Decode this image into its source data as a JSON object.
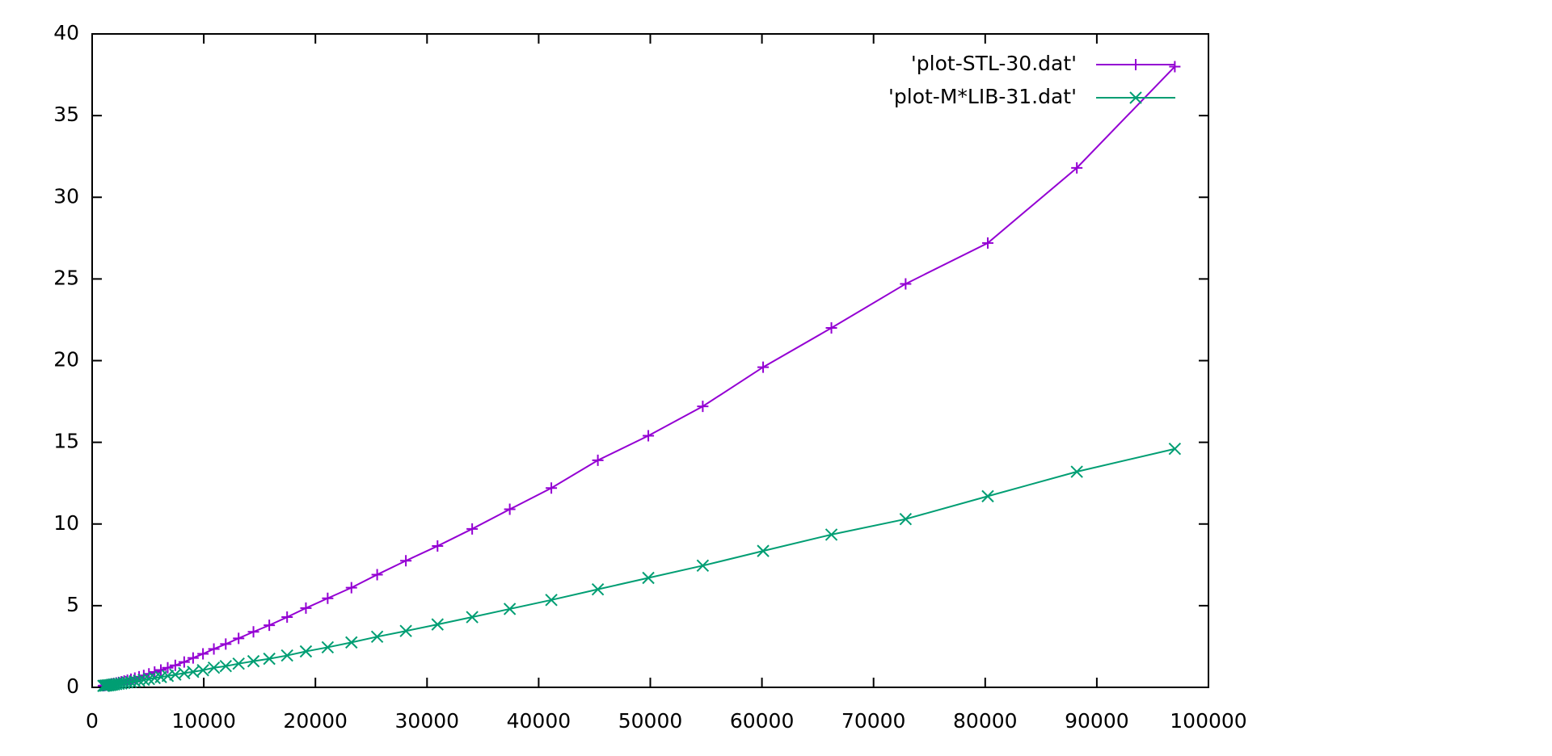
{
  "chart_data": {
    "type": "line",
    "x": [
      1006,
      1107,
      1218,
      1339,
      1473,
      1621,
      1783,
      1961,
      2157,
      2373,
      2610,
      2871,
      3158,
      3474,
      3822,
      4204,
      4624,
      5086,
      5595,
      6155,
      6770,
      7447,
      8245,
      9043,
      9929,
      10904,
      11968,
      13121,
      14450,
      15869,
      17465,
      19149,
      21099,
      23227,
      25532,
      28103,
      30940,
      34043,
      37411,
      41135,
      45301,
      49823,
      54699,
      60106,
      66223,
      72872,
      80230,
      88209,
      96986
    ],
    "series": [
      {
        "name": "'plot-STL-30.dat'",
        "color": "#9400d3",
        "marker": "plus",
        "values": [
          0.1,
          0.11,
          0.13,
          0.14,
          0.16,
          0.18,
          0.21,
          0.23,
          0.27,
          0.3,
          0.34,
          0.39,
          0.44,
          0.5,
          0.57,
          0.65,
          0.73,
          0.83,
          0.94,
          1.06,
          1.2,
          1.35,
          1.55,
          1.8,
          2.05,
          2.35,
          2.65,
          3.0,
          3.4,
          3.8,
          4.3,
          4.85,
          5.45,
          6.1,
          6.9,
          7.75,
          8.65,
          9.7,
          10.9,
          12.2,
          13.9,
          15.4,
          17.2,
          19.6,
          22.0,
          24.7,
          27.2,
          31.8,
          38.0
        ]
      },
      {
        "name": "'plot-M*LIB-31.dat'",
        "color": "#009e73",
        "marker": "cross",
        "values": [
          0.09,
          0.1,
          0.11,
          0.12,
          0.13,
          0.14,
          0.16,
          0.18,
          0.2,
          0.22,
          0.24,
          0.27,
          0.3,
          0.33,
          0.37,
          0.41,
          0.46,
          0.51,
          0.57,
          0.63,
          0.7,
          0.78,
          0.87,
          0.95,
          1.05,
          1.2,
          1.3,
          1.45,
          1.6,
          1.75,
          1.95,
          2.2,
          2.45,
          2.75,
          3.1,
          3.45,
          3.85,
          4.3,
          4.8,
          5.35,
          6.0,
          6.7,
          7.45,
          8.35,
          9.35,
          10.3,
          11.7,
          13.2,
          14.6
        ]
      }
    ],
    "xlim": [
      0,
      100000
    ],
    "xticks": [
      0,
      10000,
      20000,
      30000,
      40000,
      50000,
      60000,
      70000,
      80000,
      90000,
      100000
    ],
    "ylim": [
      0,
      40
    ],
    "yticks": [
      0,
      5,
      10,
      15,
      20,
      25,
      30,
      35,
      40
    ],
    "grid": false,
    "legend": "top-right"
  }
}
